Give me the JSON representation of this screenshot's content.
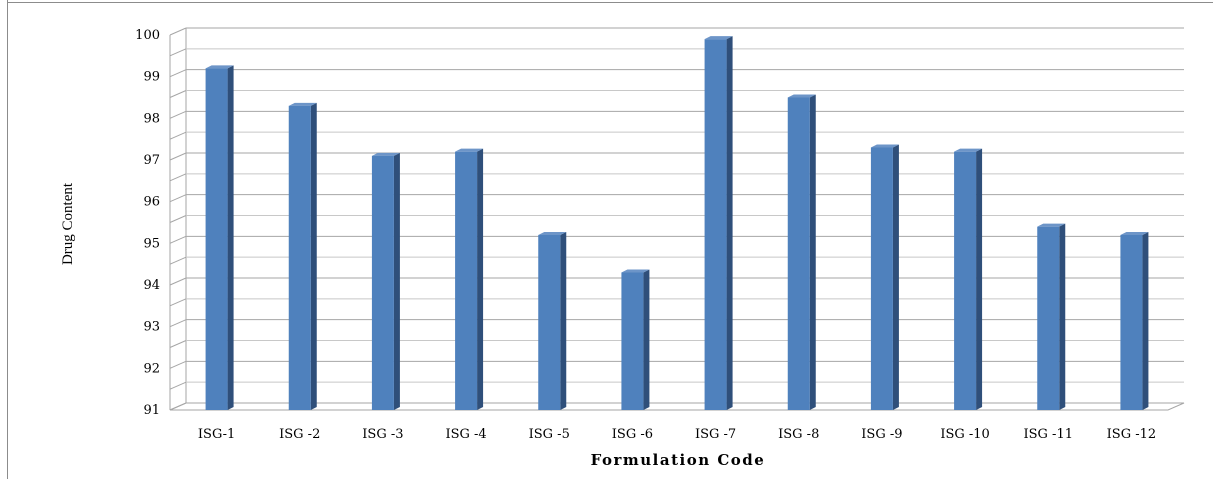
{
  "chart_data": {
    "type": "bar",
    "title": "",
    "xlabel": "Formulation Code",
    "ylabel": "Drug Content",
    "ylim": [
      91,
      100
    ],
    "yticks": [
      91,
      92,
      93,
      94,
      95,
      96,
      97,
      98,
      99,
      100
    ],
    "grid": true,
    "legend": "none",
    "bar_color": "#4f81bd",
    "bar_side_color": "#2f4f7a",
    "categories": [
      "ISG-1",
      "ISG -2",
      "ISG -3",
      "ISG -4",
      "ISG -5",
      "ISG -6",
      "ISG -7",
      "ISG -8",
      "ISG -9",
      "ISG -10",
      "ISG -11",
      "ISG -12"
    ],
    "values": [
      99.2,
      98.3,
      97.1,
      97.2,
      95.2,
      94.3,
      99.9,
      98.5,
      97.3,
      97.2,
      95.4,
      95.2
    ]
  }
}
